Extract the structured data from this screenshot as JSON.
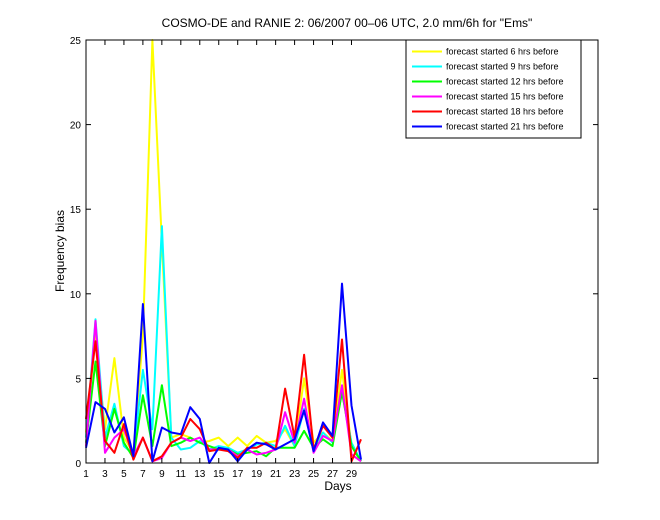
{
  "chart_data": {
    "type": "line",
    "title": "COSMO-DE and RANIE 2: 06/2007 00–06 UTC, 2.0 mm/6h for \"Ems\"",
    "xlabel": "Days",
    "ylabel": "Frequency bias",
    "xlim": [
      1,
      55
    ],
    "ylim": [
      0,
      25
    ],
    "xticks": [
      1,
      3,
      5,
      7,
      9,
      11,
      13,
      15,
      17,
      19,
      21,
      23,
      25,
      27,
      29
    ],
    "yticks": [
      0,
      5,
      10,
      15,
      20,
      25
    ],
    "legend_position": "top-right",
    "x": [
      1,
      2,
      3,
      4,
      5,
      6,
      7,
      8,
      9,
      10,
      11,
      12,
      13,
      14,
      15,
      16,
      17,
      18,
      19,
      20,
      21,
      22,
      23,
      24,
      25,
      26,
      27,
      28,
      29,
      30
    ],
    "series": [
      {
        "name": "forecast started 6 hrs before",
        "color": "#ffff00",
        "values": [
          1.8,
          7.5,
          2.0,
          6.2,
          1.5,
          0.6,
          7.5,
          25.0,
          13.0,
          1.5,
          1.7,
          1.5,
          1.2,
          1.3,
          1.5,
          1.0,
          1.5,
          1.0,
          1.6,
          1.2,
          1.3,
          2.0,
          1.0,
          5.0,
          1.2,
          1.8,
          1.3,
          5.5,
          1.0,
          0.1
        ]
      },
      {
        "name": "forecast started 9 hrs before",
        "color": "#00ffff",
        "values": [
          1.5,
          8.5,
          1.5,
          3.5,
          1.0,
          0.5,
          5.5,
          2.0,
          14.0,
          1.5,
          0.8,
          0.9,
          1.3,
          0.8,
          1.0,
          0.9,
          0.6,
          0.8,
          1.1,
          1.2,
          1.0,
          2.2,
          1.0,
          3.2,
          0.9,
          1.8,
          1.2,
          4.2,
          1.2,
          0.1
        ]
      },
      {
        "name": "forecast started 12 hrs before",
        "color": "#00ff00",
        "values": [
          1.2,
          6.0,
          1.0,
          3.2,
          1.2,
          0.3,
          4.0,
          1.0,
          4.6,
          1.0,
          1.2,
          1.5,
          1.2,
          1.0,
          0.8,
          0.8,
          0.5,
          0.6,
          0.7,
          0.4,
          0.9,
          0.9,
          0.9,
          1.9,
          0.9,
          1.4,
          1.0,
          4.2,
          1.0,
          0.1
        ]
      },
      {
        "name": "forecast started 15 hrs before",
        "color": "#ff00ff",
        "values": [
          1.0,
          8.4,
          0.6,
          1.5,
          2.0,
          0.4,
          1.5,
          0.1,
          0.3,
          1.2,
          1.5,
          1.3,
          1.5,
          0.8,
          0.8,
          0.8,
          0.4,
          0.8,
          0.5,
          0.6,
          0.8,
          3.0,
          1.2,
          3.8,
          0.6,
          1.6,
          1.3,
          4.6,
          0.5,
          0.1
        ]
      },
      {
        "name": "forecast started 18 hrs before",
        "color": "#ff0000",
        "values": [
          2.6,
          7.2,
          1.3,
          0.6,
          2.3,
          0.2,
          1.5,
          0.1,
          0.4,
          1.2,
          1.5,
          2.6,
          2.0,
          0.7,
          0.8,
          0.7,
          0.3,
          0.9,
          0.9,
          1.2,
          0.8,
          4.4,
          1.5,
          6.4,
          0.8,
          2.2,
          1.5,
          7.3,
          0.1,
          1.4
        ]
      },
      {
        "name": "forecast started 21 hrs before",
        "color": "#0000ff",
        "values": [
          0.9,
          3.6,
          3.2,
          1.8,
          2.7,
          0.4,
          9.4,
          0.1,
          2.1,
          1.8,
          1.7,
          3.3,
          2.6,
          0.0,
          0.9,
          0.8,
          0.1,
          0.8,
          1.2,
          1.1,
          0.8,
          1.1,
          1.4,
          3.1,
          0.7,
          2.4,
          1.6,
          10.6,
          3.4,
          0.2
        ]
      }
    ]
  }
}
